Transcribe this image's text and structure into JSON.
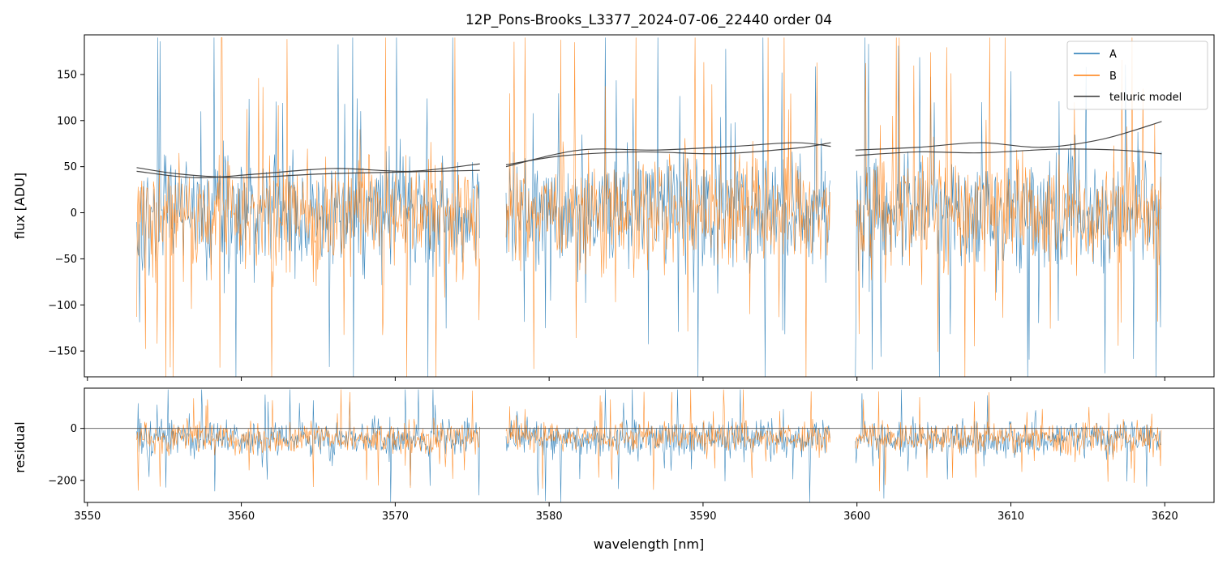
{
  "chart_data": [
    {
      "type": "line",
      "panel": "top",
      "title": "12P_Pons-Brooks_L3377_2024-07-06_22440  order 04",
      "xlabel": "",
      "ylabel": "flux [ADU]",
      "xlim": [
        3549.8,
        3623.2
      ],
      "ylim": [
        -178,
        193
      ],
      "yticks": [
        -150,
        -100,
        -50,
        0,
        50,
        100,
        150
      ],
      "ytick_labels": [
        "−150",
        "−100",
        "−50",
        "0",
        "50",
        "100",
        "150"
      ],
      "xticks": [
        3550,
        3560,
        3570,
        3580,
        3590,
        3600,
        3610,
        3620
      ],
      "legend": {
        "placement": "top-right",
        "entries": [
          "A",
          "B",
          "telluric model"
        ]
      },
      "segments": [
        [
          3553.2,
          3575.5
        ],
        [
          3577.2,
          3598.3
        ],
        [
          3599.9,
          3619.8
        ]
      ],
      "series": [
        {
          "name": "A",
          "color": "#1f77b4",
          "style": "noisy spectrum",
          "center": 0,
          "spread": 60,
          "spike_max": 190,
          "spike_min": -178
        },
        {
          "name": "B",
          "color": "#ff7f0e",
          "style": "noisy spectrum",
          "center": 0,
          "spread": 55,
          "spike_max": 190,
          "spike_min": -178
        },
        {
          "name": "telluric model A",
          "color": "#333333",
          "segments": [
            {
              "x": [
                3553.2,
                3557,
                3561,
                3566,
                3571,
                3575.5
              ],
              "y": [
                45,
                38,
                42,
                48,
                45,
                53
              ]
            },
            {
              "x": [
                3577.2,
                3581,
                3586,
                3591,
                3596,
                3598.3
              ],
              "y": [
                52,
                62,
                66,
                64,
                70,
                76
              ]
            },
            {
              "x": [
                3599.9,
                3604,
                3608,
                3612,
                3616,
                3619.8
              ],
              "y": [
                68,
                71,
                76,
                71,
                80,
                99
              ]
            }
          ]
        },
        {
          "name": "telluric model B",
          "color": "#333333",
          "segments": [
            {
              "x": [
                3553.2,
                3556,
                3560,
                3565,
                3570,
                3575.5
              ],
              "y": [
                49,
                42,
                38,
                42,
                44,
                46
              ]
            },
            {
              "x": [
                3577.2,
                3582,
                3587,
                3592,
                3596,
                3598.3
              ],
              "y": [
                50,
                68,
                68,
                72,
                76,
                72
              ]
            },
            {
              "x": [
                3599.9,
                3604,
                3608,
                3613,
                3617,
                3619.8
              ],
              "y": [
                62,
                66,
                65,
                69,
                68,
                64
              ]
            }
          ]
        }
      ]
    },
    {
      "type": "line",
      "panel": "bottom",
      "title": "",
      "xlabel": "wavelength [nm]",
      "ylabel": "residual",
      "xlim": [
        3549.8,
        3623.2
      ],
      "ylim": [
        -285,
        155
      ],
      "yticks": [
        -200,
        0
      ],
      "ytick_labels": [
        "−200",
        "0"
      ],
      "xticks": [
        3550,
        3560,
        3570,
        3580,
        3590,
        3600,
        3610,
        3620
      ],
      "xtick_labels": [
        "3550",
        "3560",
        "3570",
        "3580",
        "3590",
        "3600",
        "3610",
        "3620"
      ],
      "hline": 0,
      "segments": [
        [
          3553.2,
          3575.5
        ],
        [
          3577.2,
          3598.3
        ],
        [
          3599.9,
          3619.8
        ]
      ],
      "series": [
        {
          "name": "A",
          "color": "#1f77b4",
          "center": -40,
          "spread": 65
        },
        {
          "name": "B",
          "color": "#ff7f0e",
          "center": -35,
          "spread": 55
        }
      ]
    }
  ]
}
